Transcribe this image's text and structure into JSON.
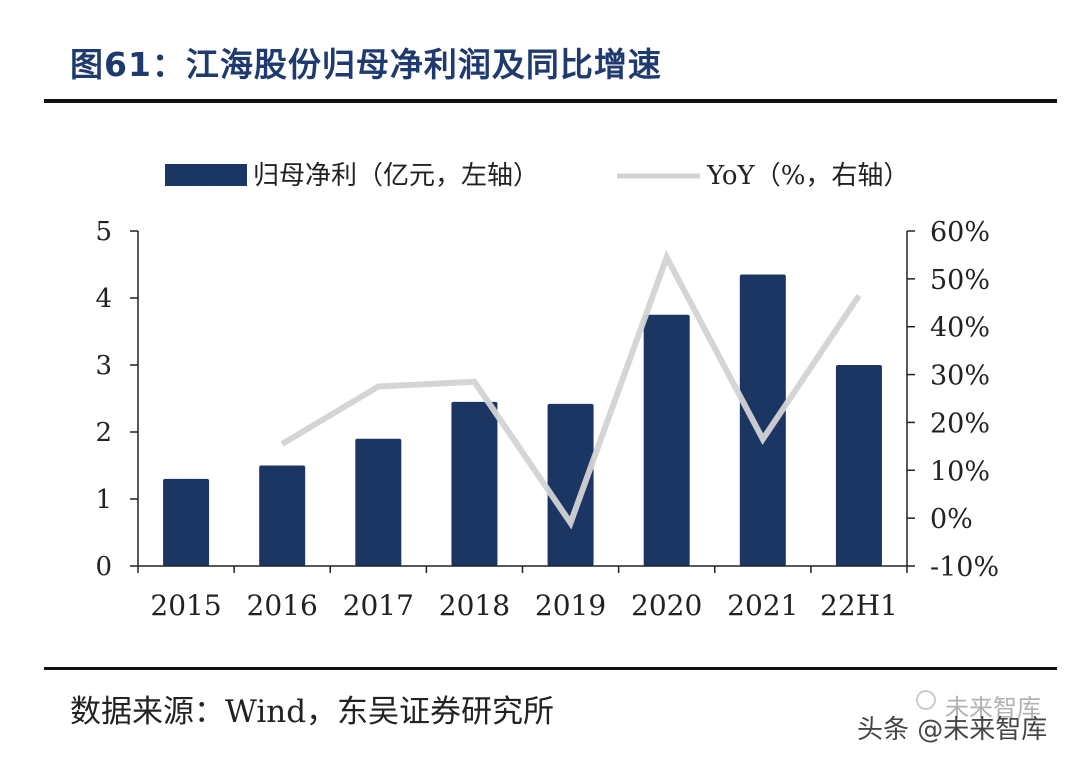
{
  "title": "图61：江海股份归母净利润及同比增速",
  "source": "数据来源：Wind，东吴证券研究所",
  "watermark": {
    "top": "未来智库",
    "bottom": "头条 @未来智库"
  },
  "colors": {
    "bar": "#1c3664",
    "line": "#d3d3d3",
    "axis": "#222222",
    "title": "#1e3a6e"
  },
  "chart_data": {
    "type": "bar+line",
    "categories": [
      "2015",
      "2016",
      "2017",
      "2018",
      "2019",
      "2020",
      "2021",
      "22H1"
    ],
    "series": [
      {
        "name": "归母净利（亿元，左轴）",
        "type": "bar",
        "axis": "left",
        "values": [
          1.3,
          1.5,
          1.9,
          2.45,
          2.42,
          3.75,
          4.35,
          3.0
        ]
      },
      {
        "name": "YoY（%，右轴）",
        "type": "line",
        "axis": "right",
        "values": [
          null,
          15.5,
          27.5,
          28.5,
          -1.0,
          54.5,
          16.5,
          46.5
        ]
      }
    ],
    "y_left": {
      "min": 0,
      "max": 5,
      "ticks": [
        "0",
        "1",
        "2",
        "3",
        "4",
        "5"
      ]
    },
    "y_right": {
      "min": -10,
      "max": 60,
      "ticks": [
        "-10%",
        "0%",
        "10%",
        "20%",
        "30%",
        "40%",
        "50%",
        "60%"
      ]
    },
    "legend_position": "top",
    "grid": false
  }
}
